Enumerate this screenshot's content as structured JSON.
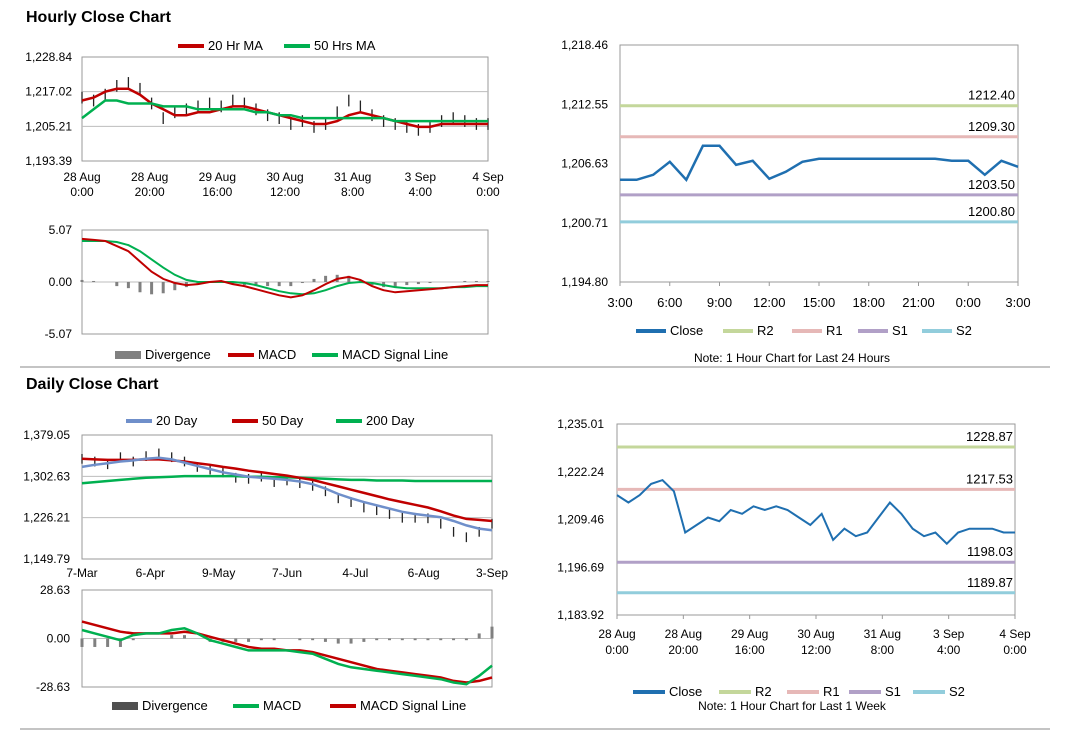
{
  "sections": {
    "hourly_title": "Hourly Close Chart",
    "daily_title": "Daily Close Chart"
  },
  "colors": {
    "ma_red": "#c00000",
    "ma_green": "#00b050",
    "ma_blue": "#6f8fca",
    "close_blue": "#1f6fb0",
    "r2": "#c4d79b",
    "r1": "#e6b8b7",
    "s1": "#b1a0c7",
    "s2": "#92cddc",
    "divergence": "#808080"
  },
  "chart_data": [
    {
      "id": "hourly_price",
      "type": "line",
      "legend": [
        "20 Hr MA",
        "50 Hrs MA"
      ],
      "ylim": [
        1193.39,
        1228.84
      ],
      "y_ticks": [
        "1,228.84",
        "1,217.02",
        "1,205.21",
        "1,193.39"
      ],
      "x_ticks": [
        [
          "28 Aug",
          "0:00"
        ],
        [
          "28 Aug",
          "20:00"
        ],
        [
          "29 Aug",
          "16:00"
        ],
        [
          "30 Aug",
          "12:00"
        ],
        [
          "31 Aug",
          "8:00"
        ],
        [
          "3 Sep",
          "4:00"
        ],
        [
          "4 Sep",
          "0:00"
        ]
      ],
      "series": [
        {
          "name": "Price",
          "values": [
            1215,
            1214,
            1216,
            1219,
            1220,
            1218,
            1213,
            1208,
            1210,
            1211,
            1212,
            1213,
            1212,
            1214,
            1213,
            1211,
            1209,
            1208,
            1206,
            1207,
            1205,
            1206,
            1210,
            1214,
            1212,
            1209,
            1207,
            1206,
            1205,
            1204,
            1205,
            1207,
            1208,
            1207,
            1206,
            1206
          ]
        },
        {
          "name": "20 Hr MA",
          "values": [
            1214,
            1215,
            1217,
            1218,
            1218,
            1216,
            1213,
            1211,
            1209,
            1209,
            1210,
            1210,
            1211,
            1212,
            1212,
            1211,
            1210,
            1209,
            1208,
            1207,
            1206,
            1206,
            1207,
            1209,
            1210,
            1209,
            1208,
            1207,
            1206,
            1205,
            1205,
            1206,
            1206,
            1206,
            1206,
            1206
          ]
        },
        {
          "name": "50 Hrs MA",
          "values": [
            1208,
            1211,
            1214,
            1214,
            1213,
            1213,
            1213,
            1212,
            1212,
            1212,
            1211,
            1211,
            1211,
            1211,
            1211,
            1210,
            1210,
            1209,
            1209,
            1208,
            1208,
            1208,
            1208,
            1208,
            1208,
            1208,
            1208,
            1207,
            1207,
            1207,
            1207,
            1207,
            1207,
            1207,
            1207,
            1207
          ]
        }
      ]
    },
    {
      "id": "hourly_macd",
      "type": "line",
      "legend": [
        "Divergence",
        "MACD",
        "MACD Signal Line"
      ],
      "ylim": [
        -5.07,
        5.07
      ],
      "y_ticks": [
        "5.07",
        "0.00",
        "-5.07"
      ],
      "series": [
        {
          "name": "MACD",
          "values": [
            4.2,
            4.1,
            4.0,
            3.5,
            3.0,
            2.0,
            1.0,
            0.3,
            -0.1,
            -0.3,
            -0.2,
            0.0,
            0.1,
            -0.2,
            -0.4,
            -0.7,
            -1.0,
            -1.3,
            -1.5,
            -1.3,
            -0.8,
            -0.2,
            0.3,
            0.5,
            0.2,
            -0.4,
            -0.8,
            -1.0,
            -0.9,
            -0.8,
            -0.7,
            -0.6,
            -0.5,
            -0.4,
            -0.3,
            -0.3
          ]
        },
        {
          "name": "MACD Signal Line",
          "values": [
            4.0,
            4.0,
            4.0,
            3.9,
            3.6,
            3.0,
            2.2,
            1.4,
            0.7,
            0.2,
            0.0,
            0.0,
            0.0,
            0.0,
            -0.1,
            -0.3,
            -0.6,
            -0.9,
            -1.1,
            -1.2,
            -1.1,
            -0.8,
            -0.4,
            -0.1,
            0.0,
            -0.1,
            -0.3,
            -0.5,
            -0.6,
            -0.6,
            -0.6,
            -0.6,
            -0.5,
            -0.5,
            -0.4,
            -0.4
          ]
        },
        {
          "name": "Divergence",
          "values": [
            0.2,
            0.1,
            0.0,
            -0.4,
            -0.6,
            -1.0,
            -1.2,
            -1.1,
            -0.8,
            -0.5,
            -0.2,
            0.0,
            0.1,
            -0.2,
            -0.3,
            -0.4,
            -0.4,
            -0.4,
            -0.4,
            -0.1,
            0.3,
            0.6,
            0.7,
            0.6,
            0.2,
            -0.3,
            -0.5,
            -0.5,
            -0.3,
            -0.2,
            -0.1,
            0.0,
            0.0,
            0.1,
            0.1,
            0.1
          ]
        }
      ]
    },
    {
      "id": "intraday_close",
      "type": "line",
      "ylim": [
        1194.8,
        1218.46
      ],
      "y_ticks": [
        "1,218.46",
        "1,212.55",
        "1,206.63",
        "1,200.71",
        "1,194.80"
      ],
      "x_ticks": [
        "3:00",
        "6:00",
        "9:00",
        "12:00",
        "15:00",
        "18:00",
        "21:00",
        "0:00",
        "3:00"
      ],
      "levels": [
        {
          "name": "R2",
          "value": 1212.4,
          "label": "1212.40"
        },
        {
          "name": "R1",
          "value": 1209.3,
          "label": "1209.30"
        },
        {
          "name": "S1",
          "value": 1203.5,
          "label": "1203.50"
        },
        {
          "name": "S2",
          "value": 1200.8,
          "label": "1200.80"
        }
      ],
      "legend": [
        "Close",
        "R2",
        "R1",
        "S1",
        "S2"
      ],
      "note": "Note: 1 Hour Chart for Last 24 Hours",
      "series": [
        {
          "name": "Close",
          "values": [
            1205.0,
            1205.0,
            1205.5,
            1206.8,
            1205.0,
            1208.4,
            1208.4,
            1206.5,
            1206.9,
            1205.1,
            1205.8,
            1206.8,
            1207.1,
            1207.1,
            1207.1,
            1207.1,
            1207.1,
            1207.1,
            1207.1,
            1207.1,
            1206.9,
            1206.9,
            1205.5,
            1206.9,
            1206.3
          ]
        }
      ]
    },
    {
      "id": "daily_price",
      "type": "line",
      "legend": [
        "20 Day",
        "50 Day",
        "200 Day"
      ],
      "ylim": [
        1149.79,
        1379.05
      ],
      "y_ticks": [
        "1,379.05",
        "1,302.63",
        "1,226.21",
        "1,149.79"
      ],
      "x_ticks": [
        "7-Mar",
        "6-Apr",
        "9-May",
        "7-Jun",
        "4-Jul",
        "6-Aug",
        "3-Sep"
      ],
      "series": [
        {
          "name": "Price",
          "values": [
            1335,
            1330,
            1325,
            1338,
            1330,
            1340,
            1345,
            1338,
            1330,
            1320,
            1315,
            1310,
            1300,
            1298,
            1302,
            1292,
            1295,
            1290,
            1285,
            1275,
            1262,
            1255,
            1245,
            1240,
            1233,
            1226,
            1226,
            1225,
            1215,
            1200,
            1190,
            1200,
            1215
          ]
        },
        {
          "name": "20 Day",
          "values": [
            1320,
            1324,
            1327,
            1330,
            1332,
            1335,
            1337,
            1334,
            1328,
            1322,
            1316,
            1310,
            1306,
            1302,
            1300,
            1298,
            1296,
            1293,
            1288,
            1280,
            1270,
            1262,
            1255,
            1249,
            1243,
            1237,
            1233,
            1230,
            1227,
            1220,
            1212,
            1206,
            1203
          ]
        },
        {
          "name": "50 Day",
          "values": [
            1335,
            1334,
            1333,
            1333,
            1333,
            1334,
            1334,
            1332,
            1330,
            1327,
            1324,
            1320,
            1317,
            1313,
            1310,
            1307,
            1304,
            1300,
            1296,
            1290,
            1284,
            1278,
            1272,
            1266,
            1260,
            1255,
            1250,
            1245,
            1238,
            1230,
            1224,
            1222,
            1220
          ]
        },
        {
          "name": "200 Day",
          "values": [
            1290,
            1292,
            1294,
            1296,
            1298,
            1300,
            1301,
            1302,
            1303,
            1303,
            1303,
            1303,
            1303,
            1302,
            1302,
            1301,
            1301,
            1300,
            1299,
            1298,
            1297,
            1296,
            1296,
            1295,
            1295,
            1295,
            1294,
            1294,
            1294,
            1294,
            1294,
            1294,
            1294
          ]
        }
      ]
    },
    {
      "id": "daily_macd",
      "type": "line",
      "legend": [
        "Divergence",
        "MACD",
        "MACD Signal Line"
      ],
      "ylim": [
        -28.63,
        28.63
      ],
      "y_ticks": [
        "28.63",
        "0.00",
        "-28.63"
      ],
      "series": [
        {
          "name": "MACD",
          "values": [
            5,
            3,
            1,
            -1,
            2,
            3,
            3,
            5,
            6,
            3,
            -1,
            -3,
            -5,
            -7,
            -7,
            -7,
            -7,
            -8,
            -9,
            -12,
            -15,
            -17,
            -18,
            -19,
            -20,
            -21,
            -22,
            -23,
            -24,
            -26,
            -27,
            -22,
            -16
          ]
        },
        {
          "name": "MACD Signal Line",
          "values": [
            10,
            8,
            6,
            4,
            3,
            3,
            3,
            3,
            4,
            3,
            1,
            -1,
            -3,
            -5,
            -6,
            -6,
            -7,
            -7,
            -8,
            -10,
            -12,
            -14,
            -16,
            -18,
            -19,
            -20,
            -21,
            -22,
            -23,
            -25,
            -26,
            -25,
            -23
          ]
        },
        {
          "name": "Divergence",
          "values": [
            -5,
            -5,
            -5,
            -5,
            -1,
            0,
            0,
            2,
            2,
            0,
            -2,
            -2,
            -2,
            -2,
            -1,
            -1,
            0,
            -1,
            -1,
            -2,
            -3,
            -3,
            -2,
            -1,
            -1,
            -1,
            -1,
            -1,
            -1,
            -1,
            -1,
            3,
            7
          ]
        }
      ]
    },
    {
      "id": "weekly_close",
      "type": "line",
      "ylim": [
        1183.92,
        1235.01
      ],
      "y_ticks": [
        "1,235.01",
        "1,222.24",
        "1,209.46",
        "1,196.69",
        "1,183.92"
      ],
      "x_ticks": [
        [
          "28 Aug",
          "0:00"
        ],
        [
          "28 Aug",
          "20:00"
        ],
        [
          "29 Aug",
          "16:00"
        ],
        [
          "30 Aug",
          "12:00"
        ],
        [
          "31 Aug",
          "8:00"
        ],
        [
          "3 Sep",
          "4:00"
        ],
        [
          "4 Sep",
          "0:00"
        ]
      ],
      "levels": [
        {
          "name": "R2",
          "value": 1228.87,
          "label": "1228.87"
        },
        {
          "name": "R1",
          "value": 1217.53,
          "label": "1217.53"
        },
        {
          "name": "S1",
          "value": 1198.03,
          "label": "1198.03"
        },
        {
          "name": "S2",
          "value": 1189.87,
          "label": "1189.87"
        }
      ],
      "legend": [
        "Close",
        "R2",
        "R1",
        "S1",
        "S2"
      ],
      "note": "Note: 1 Hour Chart for Last 1 Week",
      "series": [
        {
          "name": "Close",
          "values": [
            1216,
            1214,
            1216,
            1219,
            1220,
            1217,
            1206,
            1208,
            1210,
            1209,
            1212,
            1211,
            1213,
            1212,
            1213,
            1212,
            1210,
            1208,
            1211,
            1204,
            1207,
            1205,
            1206,
            1210,
            1214,
            1211,
            1207,
            1205,
            1206,
            1203,
            1206,
            1207,
            1207,
            1207,
            1206,
            1206
          ]
        }
      ]
    }
  ]
}
